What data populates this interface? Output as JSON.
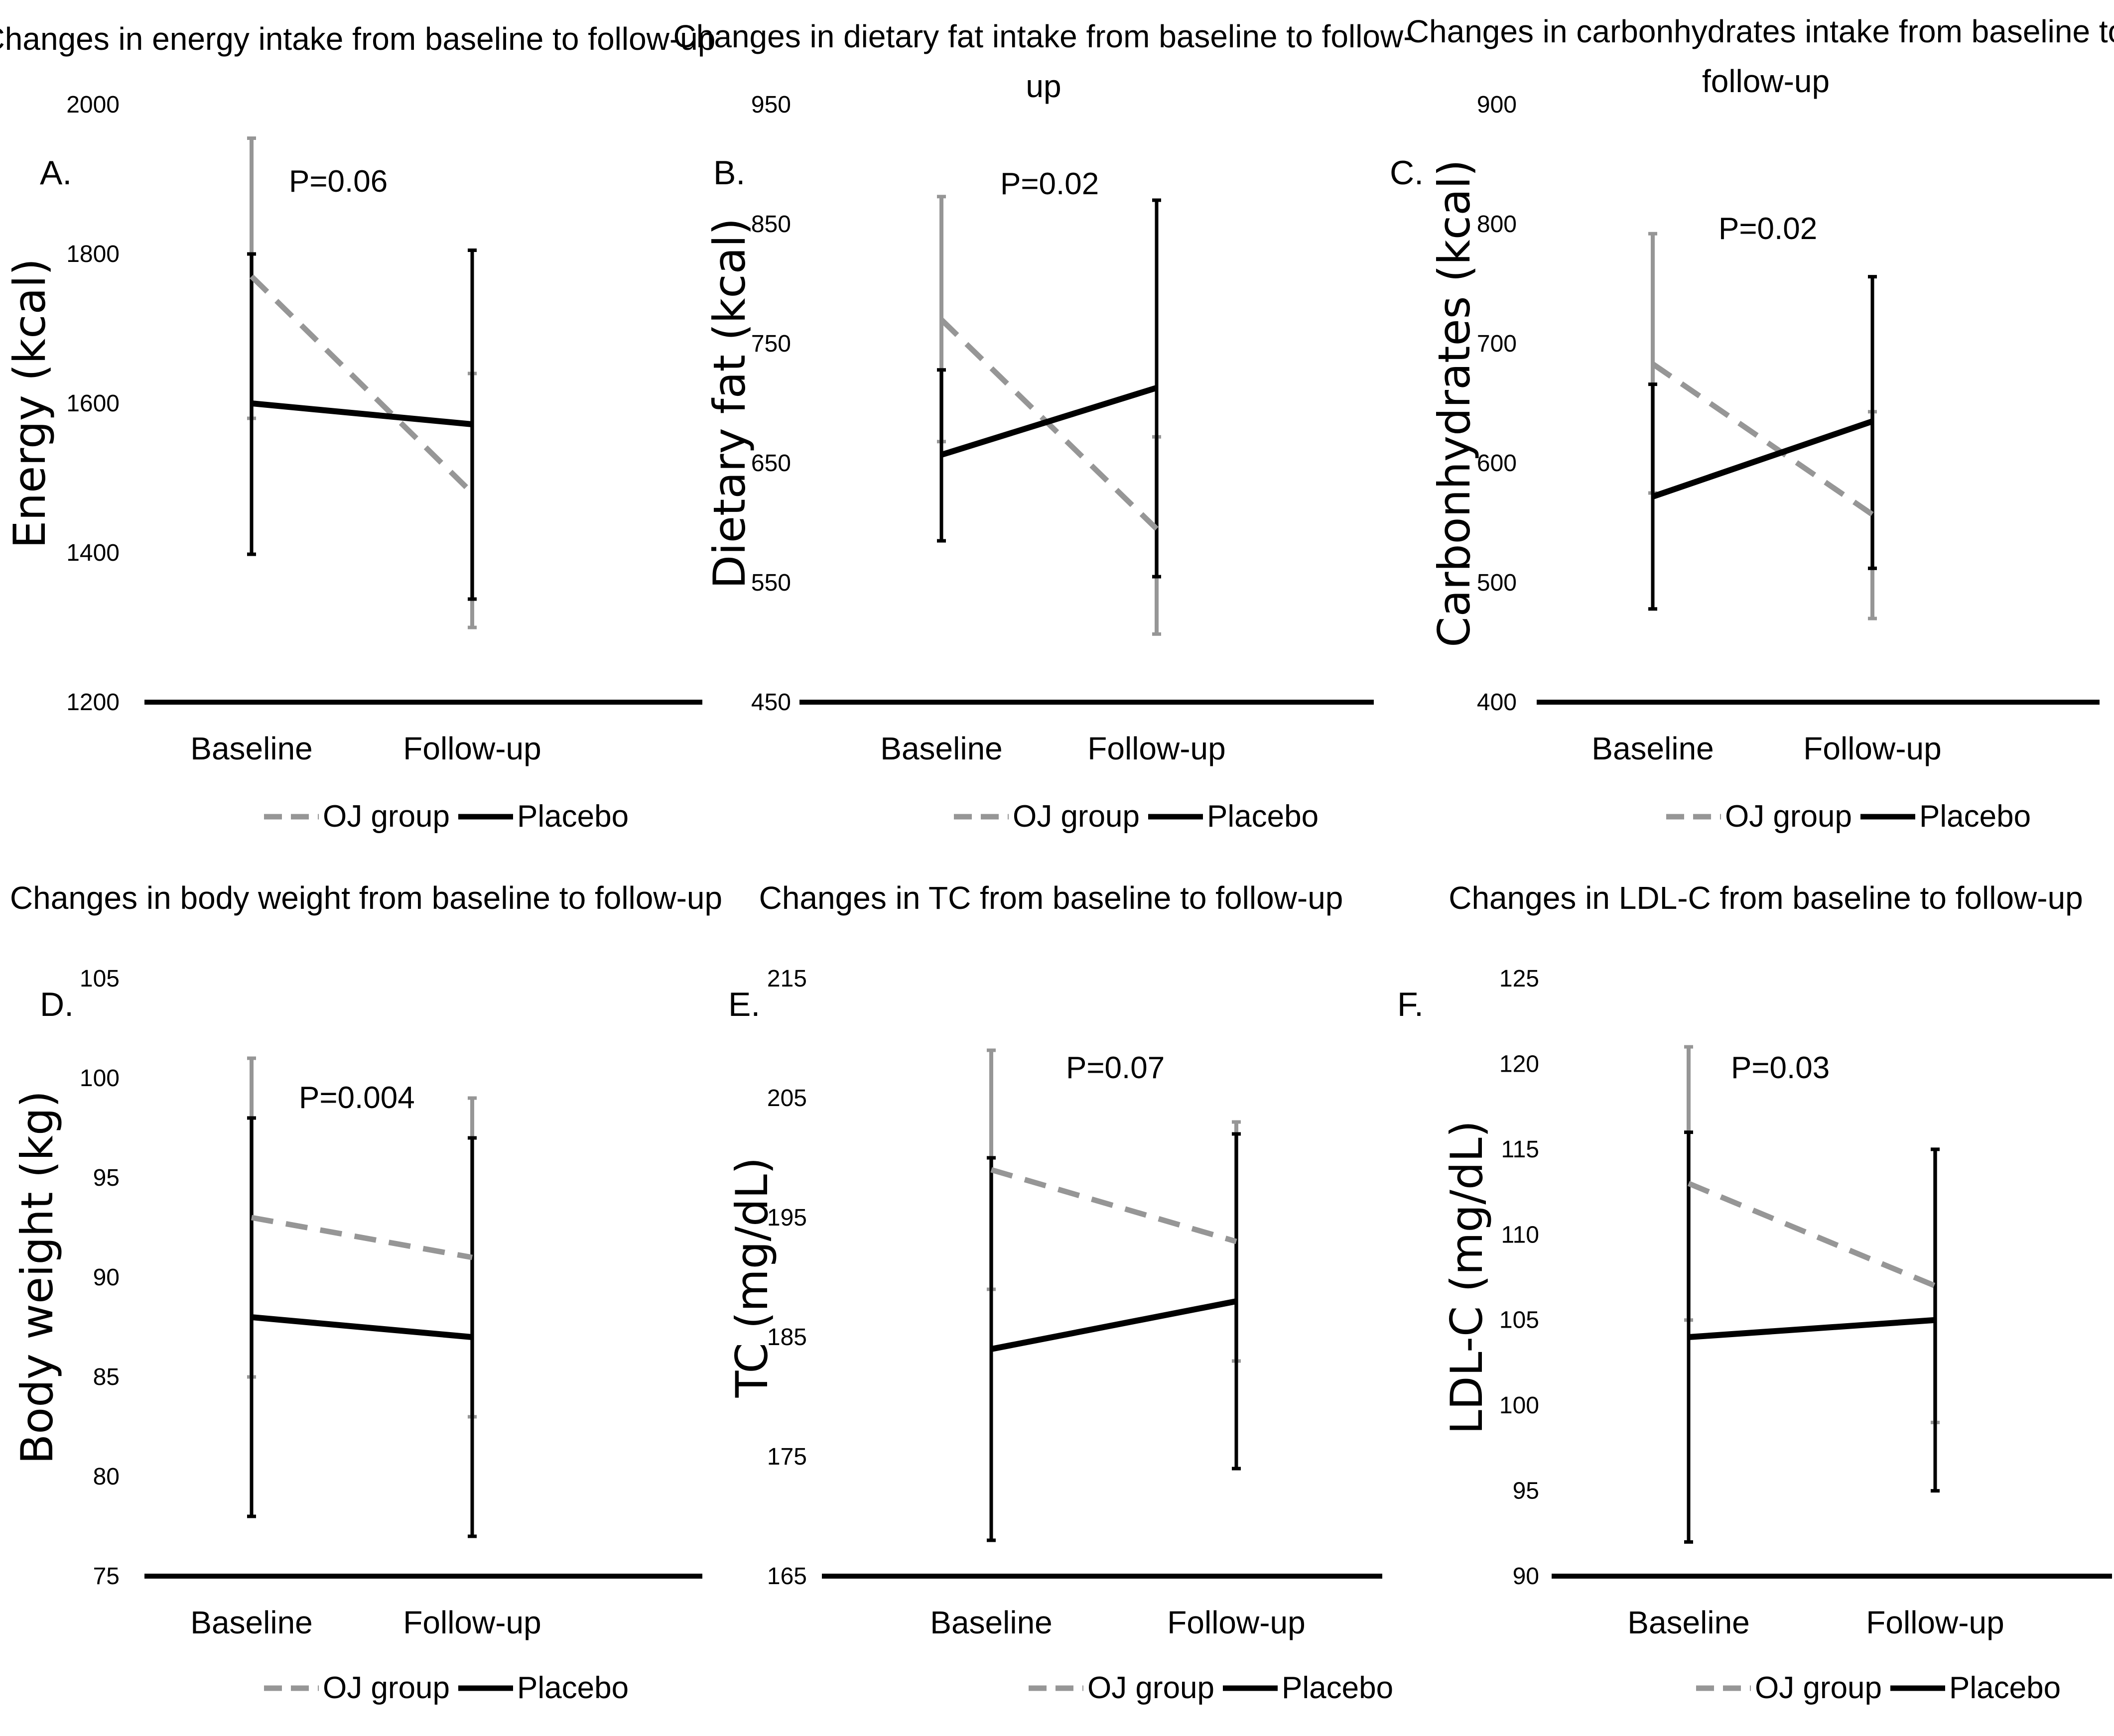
{
  "chart_data": [
    {
      "type": "line",
      "panel": "A.",
      "title": [
        "Changes in energy intake from baseline to follow-up"
      ],
      "ylabel": "Energy (kcal)",
      "xlabel": "",
      "ylim": [
        1200,
        2000
      ],
      "yticks": [
        1200,
        1400,
        1600,
        1800,
        2000
      ],
      "categories": [
        "Baseline",
        "Follow-up"
      ],
      "p_value": "P=0.06",
      "series": [
        {
          "name": "OJ group",
          "style": "dashed",
          "color": "#969696",
          "values": [
            1770,
            1480
          ],
          "err_low": [
            1580,
            1300
          ],
          "err_high": [
            1955,
            1640
          ]
        },
        {
          "name": "Placebo",
          "style": "solid",
          "color": "#000000",
          "values": [
            1600,
            1572
          ],
          "err_low": [
            1398,
            1338
          ],
          "err_high": [
            1800,
            1805
          ]
        }
      ]
    },
    {
      "type": "line",
      "panel": "B.",
      "title": [
        "Changes in dietary fat intake from baseline to follow-",
        "up"
      ],
      "ylabel": "Dietary fat (kcal)",
      "xlabel": "",
      "ylim": [
        450,
        950
      ],
      "yticks": [
        450,
        550,
        650,
        750,
        850,
        950
      ],
      "categories": [
        "Baseline",
        "Follow-up"
      ],
      "p_value": "P=0.02",
      "series": [
        {
          "name": "OJ group",
          "style": "dashed",
          "color": "#969696",
          "values": [
            770,
            595
          ],
          "err_low": [
            668,
            507
          ],
          "err_high": [
            873,
            672
          ]
        },
        {
          "name": "Placebo",
          "style": "solid",
          "color": "#000000",
          "values": [
            657,
            713
          ],
          "err_low": [
            585,
            555
          ],
          "err_high": [
            728,
            870
          ]
        }
      ]
    },
    {
      "type": "line",
      "panel": "C.",
      "title": [
        "Changes in carbonhydrates intake from baseline to",
        "follow-up"
      ],
      "ylabel": "Carbonhydrates (kcal)",
      "xlabel": "",
      "ylim": [
        400,
        900
      ],
      "yticks": [
        400,
        500,
        600,
        700,
        800,
        900
      ],
      "categories": [
        "Baseline",
        "Follow-up"
      ],
      "p_value": "P=0.02",
      "series": [
        {
          "name": "OJ group",
          "style": "dashed",
          "color": "#969696",
          "values": [
            683,
            557
          ],
          "err_low": [
            575,
            470
          ],
          "err_high": [
            792,
            643
          ]
        },
        {
          "name": "Placebo",
          "style": "solid",
          "color": "#000000",
          "values": [
            572,
            635
          ],
          "err_low": [
            478,
            512
          ],
          "err_high": [
            666,
            756
          ]
        }
      ]
    },
    {
      "type": "line",
      "panel": "D.",
      "title": [
        "Changes in body weight from baseline to follow-up"
      ],
      "ylabel": "Body weight (kg)",
      "xlabel": "",
      "ylim": [
        75,
        105
      ],
      "yticks": [
        75,
        80,
        85,
        90,
        95,
        100,
        105
      ],
      "categories": [
        "Baseline",
        "Follow-up"
      ],
      "p_value": "P=0.004",
      "series": [
        {
          "name": "OJ group",
          "style": "dashed",
          "color": "#969696",
          "values": [
            93,
            91
          ],
          "err_low": [
            85,
            83
          ],
          "err_high": [
            101,
            99
          ]
        },
        {
          "name": "Placebo",
          "style": "solid",
          "color": "#000000",
          "values": [
            88,
            87
          ],
          "err_low": [
            78,
            77
          ],
          "err_high": [
            98,
            97
          ]
        }
      ]
    },
    {
      "type": "line",
      "panel": "E.",
      "title": [
        "Changes in TC from baseline to follow-up"
      ],
      "ylabel": "TC (mg/dL)",
      "xlabel": "",
      "ylim": [
        165,
        215
      ],
      "yticks": [
        165,
        175,
        185,
        195,
        205,
        215
      ],
      "categories": [
        "Baseline",
        "Follow-up"
      ],
      "p_value": "P=0.07",
      "series": [
        {
          "name": "OJ group",
          "style": "dashed",
          "color": "#969696",
          "values": [
            199,
            193
          ],
          "err_low": [
            189,
            183
          ],
          "err_high": [
            209,
            203
          ]
        },
        {
          "name": "Placebo",
          "style": "solid",
          "color": "#000000",
          "values": [
            184,
            188
          ],
          "err_low": [
            168,
            174
          ],
          "err_high": [
            200,
            202
          ]
        }
      ]
    },
    {
      "type": "line",
      "panel": "F.",
      "title": [
        "Changes in LDL-C from baseline to follow-up"
      ],
      "ylabel": "LDL-C (mg/dL)",
      "xlabel": "",
      "ylim": [
        90,
        125
      ],
      "yticks": [
        90,
        95,
        100,
        105,
        110,
        115,
        120,
        125
      ],
      "categories": [
        "Baseline",
        "Follow-up"
      ],
      "p_value": "P=0.03",
      "series": [
        {
          "name": "OJ group",
          "style": "dashed",
          "color": "#969696",
          "values": [
            113,
            107
          ],
          "err_low": [
            105,
            99
          ],
          "err_high": [
            121,
            115
          ]
        },
        {
          "name": "Placebo",
          "style": "solid",
          "color": "#000000",
          "values": [
            104,
            105
          ],
          "err_low": [
            92,
            95
          ],
          "err_high": [
            116,
            115
          ]
        }
      ]
    }
  ]
}
